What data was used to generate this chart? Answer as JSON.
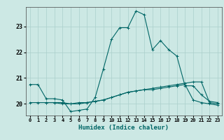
{
  "xlabel": "Humidex (Indice chaleur)",
  "ylabel": "",
  "background_color": "#cce8e4",
  "grid_color": "#aacfcb",
  "line_color": "#006666",
  "x_ticks": [
    0,
    1,
    2,
    3,
    4,
    5,
    6,
    7,
    8,
    9,
    10,
    11,
    12,
    13,
    14,
    15,
    16,
    17,
    18,
    19,
    20,
    21,
    22,
    23
  ],
  "ylim": [
    19.55,
    23.75
  ],
  "xlim": [
    -0.5,
    23.5
  ],
  "line1_x": [
    0,
    1,
    2,
    3,
    4,
    5,
    6,
    7,
    8,
    9,
    10,
    11,
    12,
    13,
    14,
    15,
    16,
    17,
    18,
    19,
    20,
    21,
    22,
    23
  ],
  "line1_y": [
    20.75,
    20.75,
    20.2,
    20.2,
    20.15,
    19.7,
    19.75,
    19.8,
    20.25,
    21.35,
    22.5,
    22.95,
    22.95,
    23.6,
    23.45,
    22.1,
    22.45,
    22.1,
    21.85,
    20.7,
    20.7,
    20.35,
    20.1,
    20.05
  ],
  "line2_x": [
    0,
    1,
    2,
    3,
    4,
    5,
    6,
    7,
    8,
    9,
    10,
    11,
    12,
    13,
    14,
    15,
    16,
    17,
    18,
    19,
    20,
    21,
    22,
    23
  ],
  "line2_y": [
    20.05,
    20.05,
    20.05,
    20.05,
    20.0,
    20.0,
    20.05,
    20.05,
    20.1,
    20.15,
    20.25,
    20.35,
    20.45,
    20.5,
    20.55,
    20.55,
    20.6,
    20.65,
    20.7,
    20.75,
    20.15,
    20.05,
    20.0,
    19.95
  ],
  "line3_x": [
    2,
    3,
    4,
    5,
    6,
    7,
    8,
    9,
    10,
    11,
    12,
    13,
    14,
    15,
    16,
    17,
    18,
    19,
    20,
    21,
    22,
    23
  ],
  "line3_y": [
    20.05,
    20.05,
    20.05,
    20.0,
    20.0,
    20.05,
    20.1,
    20.15,
    20.25,
    20.35,
    20.45,
    20.5,
    20.55,
    20.6,
    20.65,
    20.7,
    20.75,
    20.8,
    20.85,
    20.85,
    20.05,
    20.0
  ],
  "marker": "+",
  "marker_size": 3,
  "line_width": 0.8
}
